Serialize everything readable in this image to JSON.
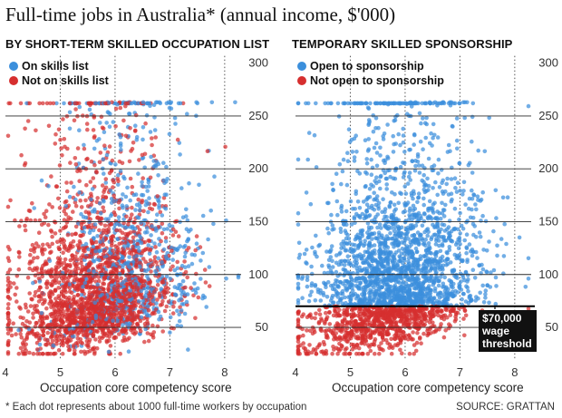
{
  "title": "Full-time jobs in Australia* (annual income, $'000)",
  "footnote": "* Each dot represents about 1000 full-time workers by occupation",
  "source": "SOURCE: GRATTAN",
  "colors": {
    "blue": "#3b8fdc",
    "red": "#d62f2f",
    "grid": "#555555"
  },
  "chart_data": [
    {
      "type": "scatter",
      "title": "BY SHORT-TERM SKILLED OCCUPATION LIST",
      "xlabel": "Occupation core competency score",
      "ylabel": "",
      "xlim": [
        4,
        8.3
      ],
      "ylim": [
        20,
        310
      ],
      "x_ticks": [
        4,
        5,
        6,
        7,
        8
      ],
      "y_ticks": [
        50,
        100,
        150,
        200,
        250,
        300
      ],
      "grid": "dotted vertical at 5, 6, 7, 8; solid horizontal at 50-250",
      "legend_position": "top-left",
      "series": [
        {
          "name": "On skills list",
          "color": "blue",
          "approx_points": 700
        },
        {
          "name": "Not on skills list",
          "color": "red",
          "approx_points": 2200
        }
      ]
    },
    {
      "type": "scatter",
      "title": "TEMPORARY SKILLED SPONSORSHIP",
      "xlabel": "Occupation core competency score",
      "ylabel": "",
      "xlim": [
        4,
        8.3
      ],
      "ylim": [
        20,
        310
      ],
      "x_ticks": [
        4,
        5,
        6,
        7,
        8
      ],
      "y_ticks": [
        50,
        100,
        150,
        200,
        250,
        300
      ],
      "grid": "dotted vertical at 5, 6, 7, 8; solid horizontal at 50-250",
      "legend_position": "top-left",
      "threshold": {
        "value": 70,
        "label": "$70,000 wage threshold"
      },
      "series": [
        {
          "name": "Open to sponsorship",
          "color": "blue",
          "approx_points": 1500,
          "range": "above 70"
        },
        {
          "name": "Not open to sponsorship",
          "color": "red",
          "approx_points": 1400,
          "range": "below 70"
        }
      ]
    }
  ]
}
